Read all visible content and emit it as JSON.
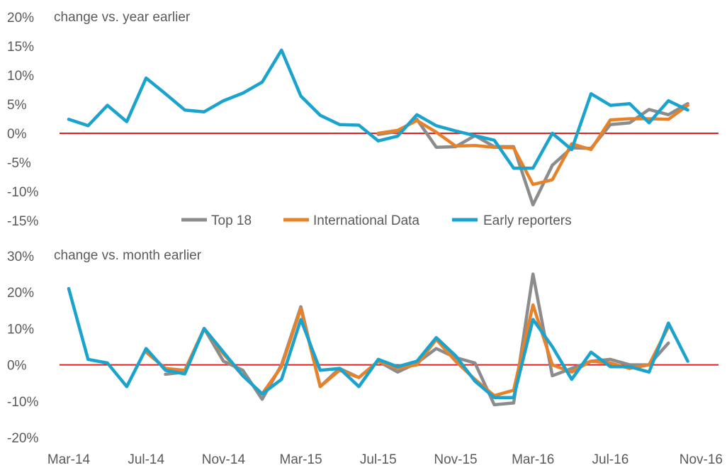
{
  "chart_data": [
    {
      "type": "line",
      "subtitle": "change vs. year earlier",
      "ylim": [
        -15,
        20
      ],
      "yticks": [
        20,
        15,
        10,
        5,
        0,
        -5,
        -10,
        -15
      ],
      "ytick_labels": [
        "20%",
        "15%",
        "10%",
        "5%",
        "0%",
        "-5%",
        "-10%",
        "-15%"
      ],
      "baseline": 0,
      "series": [
        {
          "name": "Top 18",
          "color": "#8c8c8c",
          "values": [
            null,
            null,
            null,
            null,
            null,
            null,
            null,
            null,
            null,
            null,
            null,
            null,
            null,
            null,
            null,
            null,
            -0.2,
            0.3,
            2.4,
            -2.4,
            -2.3,
            -0.4,
            -2.3,
            -2.3,
            -12.3,
            -5.5,
            -2.5,
            -2.6,
            1.5,
            1.8,
            4.1,
            3.2,
            5.1,
            null
          ]
        },
        {
          "name": "International Data",
          "color": "#e8822a",
          "values": [
            null,
            null,
            null,
            null,
            null,
            null,
            null,
            null,
            null,
            null,
            null,
            null,
            null,
            null,
            null,
            null,
            0.0,
            0.5,
            2.2,
            0.2,
            -2.2,
            -2.1,
            -2.4,
            -2.5,
            -8.8,
            -8.0,
            -1.8,
            -2.8,
            2.3,
            2.5,
            2.5,
            2.4,
            4.8,
            null
          ]
        },
        {
          "name": "Early reporters",
          "color": "#1aa3cc",
          "values": [
            2.4,
            1.3,
            4.8,
            2.0,
            9.5,
            6.8,
            4.0,
            3.7,
            5.6,
            6.9,
            8.8,
            14.3,
            6.4,
            3.1,
            1.5,
            1.4,
            -1.3,
            -0.5,
            3.2,
            1.3,
            0.4,
            -0.4,
            -1.2,
            -6.0,
            -6.0,
            0.0,
            -2.8,
            6.8,
            4.8,
            5.1,
            1.8,
            5.6,
            4.0,
            null
          ]
        }
      ]
    },
    {
      "type": "line",
      "subtitle": "change vs. month earlier",
      "ylim": [
        -20,
        30
      ],
      "yticks": [
        30,
        20,
        10,
        0,
        -10,
        -20
      ],
      "ytick_labels": [
        "30%",
        "20%",
        "10%",
        "0%",
        "-10%",
        "-20%"
      ],
      "baseline": 0,
      "x_tick_labels": [
        "Mar-14",
        "Jul-14",
        "Nov-14",
        "Mar-15",
        "Jul-15",
        "Nov-15",
        "Mar-16",
        "Jul-16",
        "Nov-16"
      ],
      "x_tick_index": [
        0,
        4,
        8,
        12,
        16,
        20,
        24,
        28,
        32
      ],
      "series": [
        {
          "name": "Top 18",
          "color": "#8c8c8c",
          "values": [
            null,
            null,
            null,
            null,
            null,
            -2.6,
            -2.0,
            10.0,
            1.0,
            -1.5,
            -9.5,
            0.0,
            16.0,
            -6.0,
            -1.0,
            -3.5,
            1.0,
            -2.0,
            0.5,
            4.5,
            2.0,
            0.5,
            -11.0,
            -10.5,
            25.0,
            -3.0,
            -1.0,
            1.0,
            1.5,
            0.0,
            0.0,
            6.0,
            null
          ]
        },
        {
          "name": "International Data",
          "color": "#e8822a",
          "values": [
            null,
            null,
            null,
            null,
            3.5,
            -1.0,
            -1.5,
            10.0,
            3.0,
            -3.0,
            -8.0,
            -0.5,
            15.5,
            -6.0,
            -1.5,
            -3.5,
            1.0,
            -1.0,
            0.0,
            7.0,
            1.0,
            -4.0,
            -8.5,
            -7.0,
            16.5,
            0.0,
            -2.0,
            1.0,
            0.5,
            -1.0,
            0.0,
            10.5,
            null
          ]
        },
        {
          "name": "Early reporters",
          "color": "#1aa3cc",
          "values": [
            21.0,
            1.5,
            0.5,
            -6.0,
            4.5,
            -1.5,
            -2.5,
            10.0,
            3.5,
            -3.0,
            -8.0,
            -4.0,
            12.5,
            -1.5,
            -1.0,
            -6.0,
            1.5,
            -0.5,
            1.0,
            7.5,
            2.5,
            -4.5,
            -9.0,
            -9.0,
            12.5,
            5.0,
            -4.0,
            3.5,
            -0.5,
            -0.5,
            -2.0,
            11.5,
            1.0
          ]
        }
      ]
    }
  ],
  "legend": {
    "items": [
      {
        "label": "Top 18",
        "color": "#8c8c8c"
      },
      {
        "label": "International Data",
        "color": "#e8822a"
      },
      {
        "label": "Early reporters",
        "color": "#1aa3cc"
      }
    ]
  },
  "baseline_color": "#e02020"
}
